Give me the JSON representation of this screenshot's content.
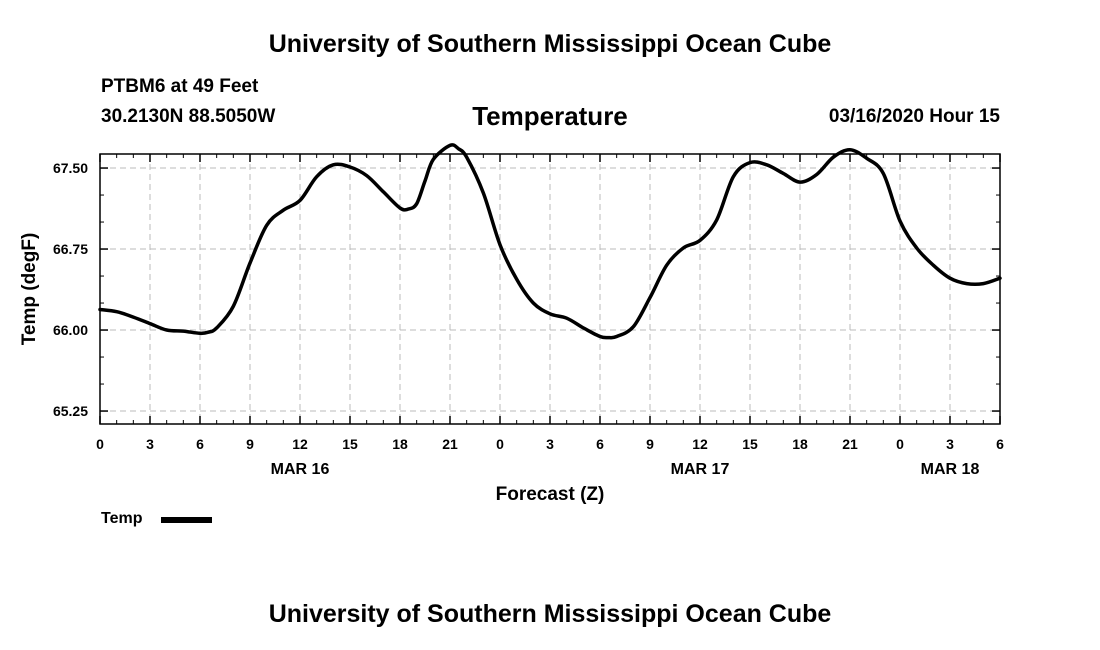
{
  "header": {
    "title": "University of Southern Mississippi Ocean Cube",
    "station": "PTBM6 at 49 Feet",
    "coords": "30.2130N 88.5050W",
    "datetime": "03/16/2020 Hour 15"
  },
  "footer": {
    "title": "University of Southern Mississippi Ocean Cube"
  },
  "legend": {
    "label": "Temp",
    "color": "#000000"
  },
  "chart_data": {
    "type": "line",
    "title": "Temperature",
    "xlabel": "Forecast (Z)",
    "ylabel": "Temp (degF)",
    "xlim": [
      0,
      54
    ],
    "ylim": [
      65.13,
      67.63
    ],
    "grid": true,
    "x_tick_values": [
      0,
      3,
      6,
      9,
      12,
      15,
      18,
      21,
      24,
      27,
      30,
      33,
      36,
      39,
      42,
      45,
      48,
      51,
      54
    ],
    "x_tick_labels": [
      "0",
      "3",
      "6",
      "9",
      "12",
      "15",
      "18",
      "21",
      "0",
      "3",
      "6",
      "9",
      "12",
      "15",
      "18",
      "21",
      "0",
      "3",
      "6"
    ],
    "x_day_labels": [
      {
        "x": 12,
        "label": "MAR 16"
      },
      {
        "x": 36,
        "label": "MAR 17"
      },
      {
        "x": 51,
        "label": "MAR 18"
      }
    ],
    "y_ticks": [
      65.25,
      66.0,
      66.75,
      67.5
    ],
    "y_tick_labels": [
      "65.25",
      "66.00",
      "66.75",
      "67.50"
    ],
    "series": [
      {
        "name": "Temp",
        "x": [
          0,
          1,
          2,
          3,
          4,
          5,
          6,
          6.5,
          7,
          8,
          9,
          10,
          11,
          12,
          13,
          14,
          15,
          16,
          17,
          18,
          18.5,
          19,
          19.5,
          20,
          21,
          21.5,
          22,
          23,
          24,
          25,
          26,
          27,
          28,
          29,
          30,
          30.5,
          31,
          32,
          33,
          34,
          35,
          36,
          37,
          38,
          39,
          40,
          41,
          42,
          43,
          44,
          45,
          46,
          47,
          48,
          49,
          50,
          51,
          52,
          53,
          54
        ],
        "values": [
          66.19,
          66.17,
          66.12,
          66.06,
          66.0,
          65.99,
          65.97,
          65.98,
          66.02,
          66.22,
          66.62,
          66.97,
          67.11,
          67.2,
          67.42,
          67.53,
          67.51,
          67.43,
          67.28,
          67.13,
          67.12,
          67.17,
          67.38,
          67.58,
          67.71,
          67.68,
          67.6,
          67.27,
          66.79,
          66.47,
          66.25,
          66.15,
          66.11,
          66.02,
          65.94,
          65.93,
          65.94,
          66.03,
          66.3,
          66.6,
          66.76,
          66.83,
          67.02,
          67.42,
          67.55,
          67.53,
          67.45,
          67.37,
          67.44,
          67.6,
          67.67,
          67.59,
          67.45,
          67.01,
          66.76,
          66.6,
          66.48,
          66.43,
          66.43,
          66.48
        ]
      }
    ]
  }
}
